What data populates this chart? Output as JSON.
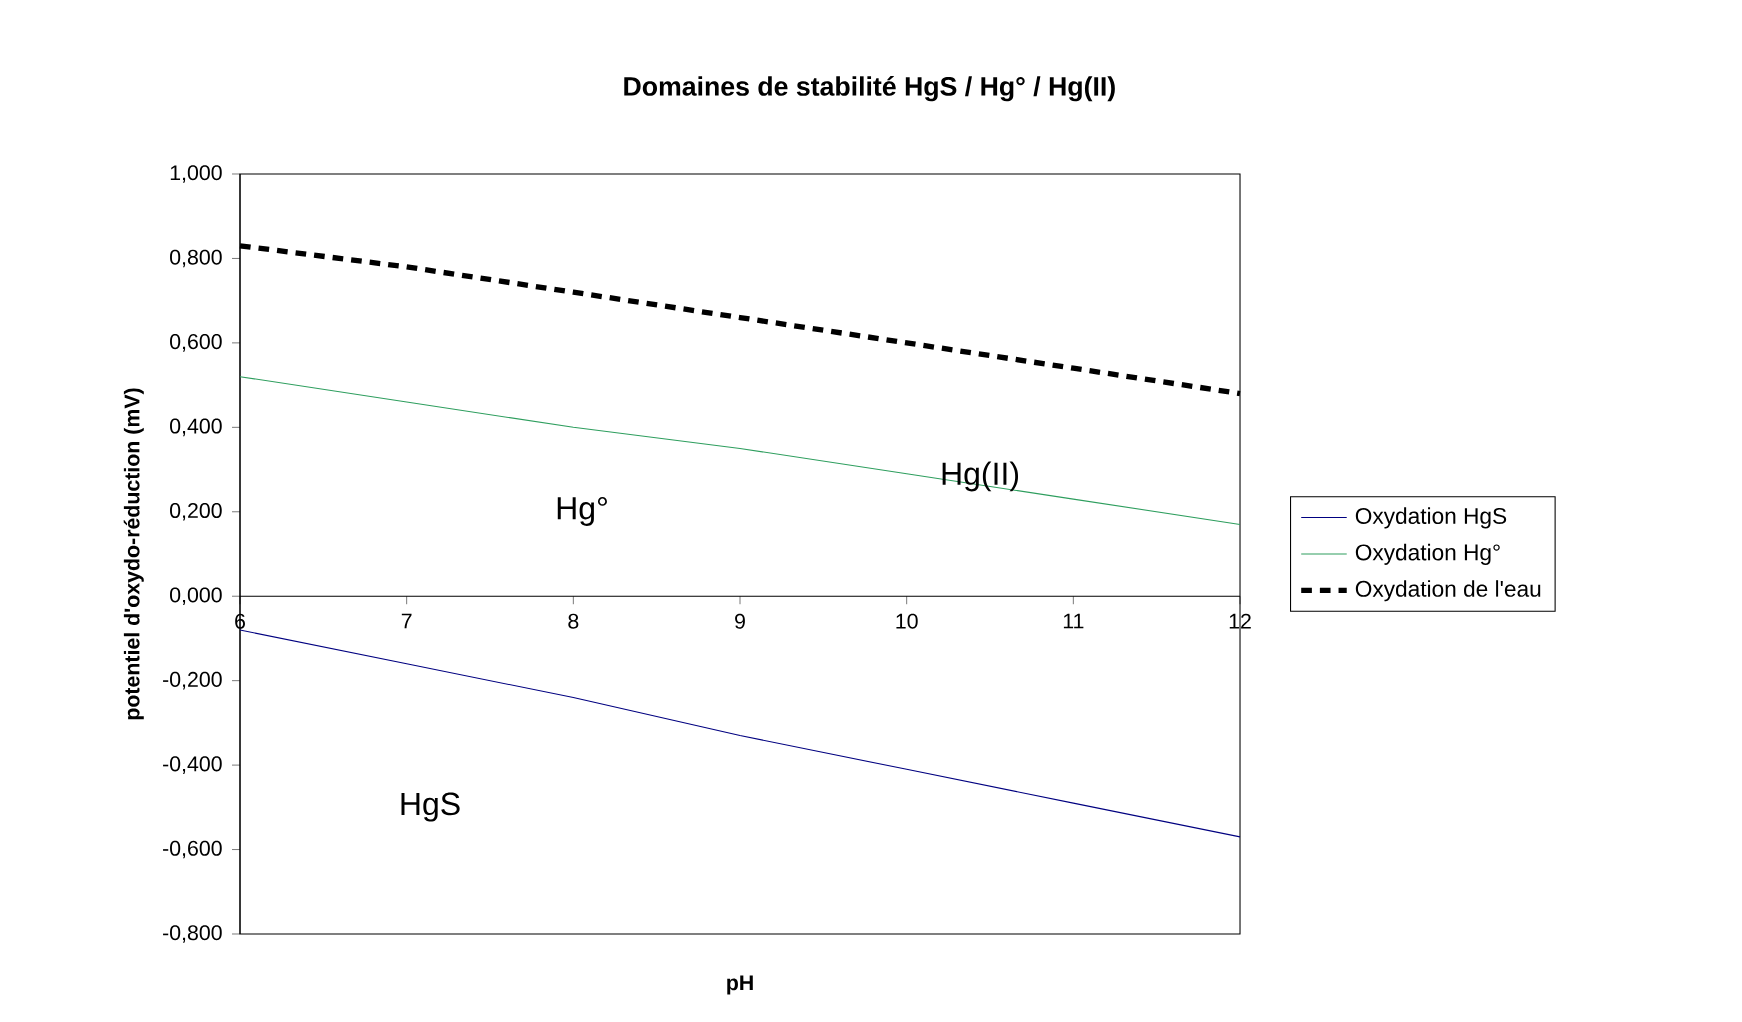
{
  "chart_data": {
    "type": "line",
    "title": "Domaines de stabilité HgS / Hg° / Hg(II)",
    "xlabel": "pH",
    "ylabel": "potentiel d'oxydo-réduction (mV)",
    "x": [
      6,
      7,
      8,
      9,
      10,
      11,
      12
    ],
    "series": [
      {
        "name": "Oxydation HgS",
        "color": "#000080",
        "line_style": "solid",
        "values": [
          -0.08,
          -0.16,
          -0.24,
          -0.33,
          -0.41,
          -0.49,
          -0.57
        ]
      },
      {
        "name": "Oxydation Hg°",
        "color": "#2e9e5e",
        "line_style": "solid",
        "values": [
          0.52,
          0.46,
          0.4,
          0.35,
          0.29,
          0.23,
          0.17
        ]
      },
      {
        "name": "Oxydation de l'eau",
        "color": "#000000",
        "line_style": "dashed",
        "values": [
          0.83,
          0.78,
          0.72,
          0.66,
          0.6,
          0.54,
          0.48
        ]
      }
    ],
    "xlim": [
      6,
      12
    ],
    "xticks": [
      6,
      7,
      8,
      9,
      10,
      11,
      12
    ],
    "ylim": [
      -0.8,
      1.0
    ],
    "yticks": [
      {
        "value": -0.8,
        "label": "-0,800"
      },
      {
        "value": -0.6,
        "label": "-0,600"
      },
      {
        "value": -0.4,
        "label": "-0,400"
      },
      {
        "value": -0.2,
        "label": "-0,200"
      },
      {
        "value": 0,
        "label": "0,000"
      },
      {
        "value": 0.2,
        "label": "0,200"
      },
      {
        "value": 0.4,
        "label": "0,400"
      },
      {
        "value": 0.6,
        "label": "0,600"
      },
      {
        "value": 0.8,
        "label": "0,800"
      },
      {
        "value": 1.0,
        "label": "1,000"
      }
    ],
    "legend": "right",
    "grid": false,
    "marker": "none",
    "annotations": [
      "Hg(II)",
      "Hg°",
      "HgS"
    ]
  }
}
